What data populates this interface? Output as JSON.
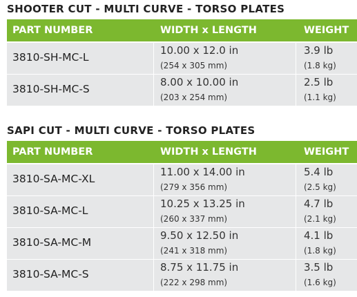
{
  "sections": [
    {
      "title": "SHOOTER CUT - MULTI CURVE - TORSO PLATES",
      "headers": [
        "PART NUMBER",
        "WIDTH x LENGTH",
        "WEIGHT"
      ],
      "rows": [
        {
          "part": "3810-SH-MC-L",
          "size": "10.00 x 12.0 in",
          "size_metric": "(254 x 305 mm)",
          "weight": "3.9 lb",
          "weight_metric": "(1.8 kg)"
        },
        {
          "part": "3810-SH-MC-S",
          "size": "8.00 x 10.00 in",
          "size_metric": "(203 x 254 mm)",
          "weight": "2.5 lb",
          "weight_metric": "(1.1 kg)"
        }
      ]
    },
    {
      "title": "SAPI CUT - MULTI CURVE - TORSO PLATES",
      "headers": [
        "PART NUMBER",
        "WIDTH x LENGTH",
        "WEIGHT"
      ],
      "rows": [
        {
          "part": "3810-SA-MC-XL",
          "size": "11.00 x 14.00 in",
          "size_metric": "(279 x 356 mm)",
          "weight": "5.4 lb",
          "weight_metric": "(2.5 kg)"
        },
        {
          "part": "3810-SA-MC-L",
          "size": "10.25 x 13.25 in",
          "size_metric": "(260 x 337 mm)",
          "weight": "4.7 lb",
          "weight_metric": "(2.1 kg)"
        },
        {
          "part": "3810-SA-MC-M",
          "size": "9.50 x 12.50 in",
          "size_metric": "(241 x 318 mm)",
          "weight": "4.1 lb",
          "weight_metric": "(1.8 kg)"
        },
        {
          "part": "3810-SA-MC-S",
          "size": "8.75 x 11.75 in",
          "size_metric": "(222 x 298 mm)",
          "weight": "3.5 lb",
          "weight_metric": "(1.6 kg)"
        }
      ]
    }
  ]
}
